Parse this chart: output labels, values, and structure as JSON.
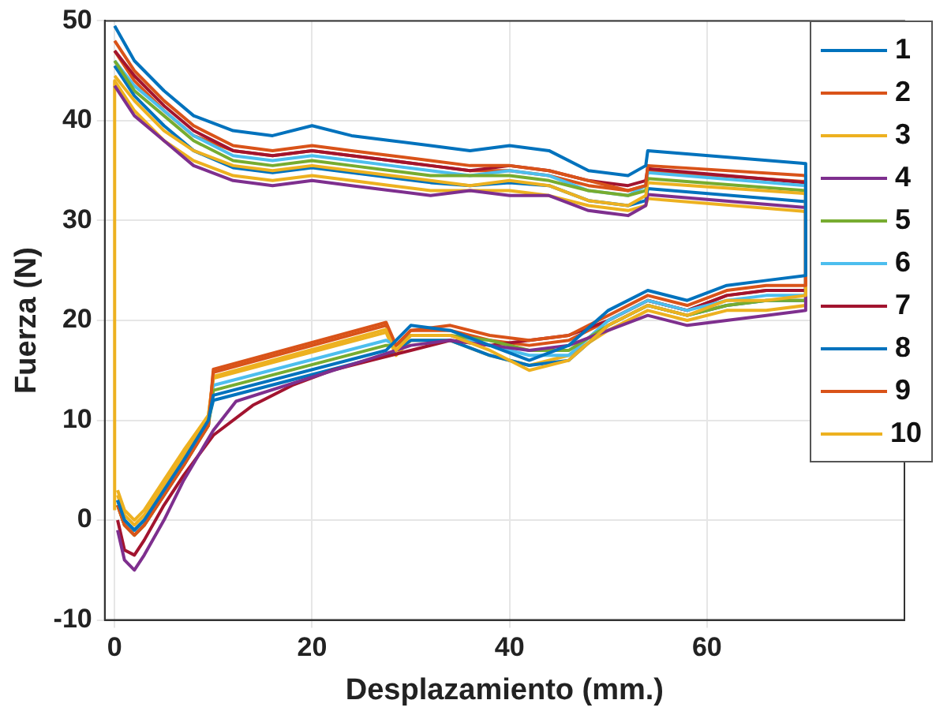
{
  "chart_data": {
    "type": "line",
    "xlabel": "Desplazamiento (mm.)",
    "ylabel": "Fuerza (N)",
    "xlim": [
      -1,
      80
    ],
    "xticks": [
      0,
      20,
      40,
      60
    ],
    "ylim": [
      -10,
      50
    ],
    "yticks": [
      -10,
      0,
      10,
      20,
      30,
      40,
      50
    ],
    "grid": true,
    "legend": "top right",
    "marker": "none",
    "line_style": "solid",
    "series": [
      {
        "name": "1",
        "color": "#0072bd",
        "x": [
          0,
          2,
          5,
          8,
          12,
          16,
          20,
          24,
          28,
          32,
          36,
          40,
          44,
          48,
          52,
          53.8,
          54,
          70,
          70,
          66,
          62,
          58,
          54,
          50,
          46,
          42,
          38,
          34,
          30,
          28.5,
          27.5,
          10,
          9.5,
          7,
          5,
          3,
          2,
          1,
          0.3
        ],
        "values": [
          49.5,
          46,
          43,
          40.5,
          39,
          38.5,
          39.5,
          38.5,
          38,
          37.5,
          37,
          37.5,
          37,
          35,
          34.5,
          35.5,
          37,
          35.7,
          24.5,
          24,
          23.5,
          22,
          23,
          21,
          17.5,
          16,
          17.5,
          19,
          19.5,
          18,
          17,
          12.5,
          10,
          6,
          3,
          0,
          -1,
          0,
          2
        ]
      },
      {
        "name": "2",
        "color": "#d95319",
        "x": [
          0,
          2,
          5,
          8,
          12,
          16,
          20,
          24,
          28,
          32,
          36,
          40,
          44,
          48,
          52,
          53.8,
          54,
          70,
          70,
          66,
          62,
          58,
          54,
          50,
          46,
          42,
          38,
          34,
          30,
          28.5,
          27.5,
          10,
          9.5,
          7,
          5,
          3,
          2,
          1,
          0.3
        ],
        "values": [
          48,
          45,
          42,
          39.5,
          37.5,
          37,
          37.5,
          37,
          36.5,
          36,
          35.5,
          35.5,
          35,
          34,
          33,
          33.5,
          35.5,
          34.5,
          23.5,
          23.5,
          23,
          21.5,
          22.5,
          20.5,
          18.5,
          18,
          18.5,
          19.5,
          19,
          17.5,
          19.8,
          15.1,
          9.5,
          5.5,
          2.5,
          -0.5,
          -1.5,
          -0.5,
          1.5
        ]
      },
      {
        "name": "3",
        "color": "#edb120",
        "x": [
          0,
          2,
          5,
          8,
          12,
          16,
          20,
          24,
          28,
          32,
          36,
          40,
          44,
          48,
          52,
          53.8,
          54,
          70,
          70,
          66,
          62,
          58,
          54,
          50,
          46,
          42,
          38,
          34,
          30,
          28.5,
          27.5,
          10,
          9.5,
          7,
          5,
          3,
          2,
          1,
          0.3
        ],
        "values": [
          44.5,
          42,
          39,
          37,
          35.5,
          35,
          35.5,
          35,
          34.5,
          34,
          33.5,
          34,
          33.5,
          32,
          31.5,
          32.5,
          33.8,
          32.7,
          22.5,
          22,
          22,
          20.5,
          21.5,
          19.5,
          16,
          15,
          17,
          18.5,
          18.5,
          17,
          19.1,
          14.4,
          10.5,
          6.5,
          3.5,
          0.5,
          -0.5,
          0.5,
          2.5
        ]
      },
      {
        "name": "4",
        "color": "#7e2f8e",
        "x": [
          0,
          2,
          5,
          8,
          12,
          16,
          20,
          24,
          28,
          32,
          36,
          40,
          44,
          48,
          52,
          53.8,
          54,
          70,
          70,
          66,
          62,
          58,
          54,
          50,
          46,
          42,
          38,
          34,
          30,
          28.5,
          26.3,
          12.3,
          10,
          7,
          5,
          3,
          2,
          1,
          0.3
        ],
        "values": [
          43.5,
          40.5,
          38,
          35.5,
          34,
          33.5,
          34,
          33.5,
          33,
          32.5,
          33,
          32.5,
          32.5,
          31,
          30.5,
          31.5,
          32.6,
          31.3,
          21,
          20.5,
          20,
          19.5,
          20.5,
          19,
          17.5,
          17,
          17.5,
          18,
          17.5,
          17,
          16.3,
          11.9,
          9,
          4,
          0,
          -3.5,
          -5,
          -4,
          -1
        ]
      },
      {
        "name": "5",
        "color": "#77ac30",
        "x": [
          0,
          2,
          5,
          8,
          12,
          16,
          20,
          24,
          28,
          32,
          36,
          40,
          44,
          48,
          52,
          53.8,
          54,
          70,
          70,
          66,
          62,
          58,
          54,
          50,
          46,
          42,
          38,
          34,
          30,
          28.5,
          27.5,
          10,
          9.5,
          7,
          5,
          3,
          2,
          1,
          0.3
        ],
        "values": [
          46,
          43,
          40.5,
          38,
          36,
          35.5,
          36,
          35.5,
          35,
          34.5,
          34.5,
          34.5,
          34,
          33,
          32.5,
          33,
          34.2,
          33,
          22,
          22,
          21.5,
          20.5,
          21.5,
          19.5,
          17,
          17,
          18,
          18.5,
          18.5,
          17.5,
          17.5,
          13,
          9.5,
          5.5,
          2.5,
          -0.5,
          -1.5,
          -0.5,
          1.5
        ]
      },
      {
        "name": "6",
        "color": "#4dbeee",
        "x": [
          0,
          2,
          5,
          8,
          12,
          16,
          20,
          24,
          28,
          32,
          36,
          40,
          44,
          48,
          52,
          53.8,
          54,
          70,
          70,
          66,
          62,
          58,
          54,
          50,
          46,
          42,
          38,
          34,
          30,
          28.5,
          27.5,
          10,
          9.5,
          7,
          5,
          3,
          2,
          1,
          0.3
        ],
        "values": [
          46,
          43.5,
          41,
          38.5,
          36.5,
          36,
          36.5,
          36,
          35.5,
          35,
          34.5,
          35,
          34.5,
          33,
          32.5,
          33.5,
          34.8,
          33.5,
          22.5,
          22.5,
          22,
          21,
          22,
          20,
          16.5,
          16.5,
          17.5,
          18.5,
          18.5,
          17.5,
          18,
          13.5,
          10,
          6,
          2.5,
          0,
          -1,
          0,
          2
        ]
      },
      {
        "name": "7",
        "color": "#a2142f",
        "x": [
          0,
          2,
          5,
          8,
          12,
          16,
          20,
          24,
          28,
          32,
          36,
          40,
          44,
          48,
          52,
          53.8,
          54,
          70,
          70,
          66,
          62,
          58,
          54,
          50,
          46,
          42,
          38,
          34,
          30,
          26,
          22,
          18,
          14,
          10,
          7,
          5,
          3,
          2,
          1,
          0.3
        ],
        "values": [
          47,
          44.5,
          41.5,
          39,
          37,
          36.5,
          37,
          36.5,
          36,
          35.5,
          35,
          35.5,
          35,
          34,
          33.5,
          34,
          35.2,
          33.8,
          23,
          23,
          22.5,
          21,
          22,
          20,
          18.5,
          18,
          17.5,
          18,
          17,
          16,
          15,
          13.5,
          11.5,
          8.5,
          4.5,
          1.5,
          -2,
          -3.5,
          -3,
          0
        ]
      },
      {
        "name": "8",
        "color": "#0072bd",
        "x": [
          0,
          2,
          5,
          8,
          12,
          16,
          20,
          24,
          28,
          32,
          36,
          40,
          44,
          48,
          52,
          53.8,
          54,
          70,
          70,
          66,
          62,
          58,
          54,
          50,
          46,
          42,
          38,
          34,
          30,
          28.5,
          27.5,
          10,
          9.5,
          7,
          5,
          3,
          2,
          1,
          0.3
        ],
        "values": [
          45.5,
          42.5,
          39.5,
          37,
          35.3,
          34.8,
          35.3,
          34.8,
          34.3,
          33.8,
          33.5,
          33.8,
          33.5,
          32,
          31.5,
          32,
          33.2,
          31.9,
          22,
          22,
          21.5,
          20.5,
          21.5,
          19.5,
          16,
          15.5,
          16.5,
          18,
          18,
          17,
          16.5,
          12,
          10,
          6,
          3,
          0,
          -1,
          0,
          2
        ]
      },
      {
        "name": "9",
        "color": "#d95319",
        "x": [
          0,
          2,
          5,
          8,
          12,
          16,
          20,
          24,
          28,
          32,
          36,
          40,
          44,
          48,
          52,
          53.8,
          54,
          70,
          70,
          66,
          62,
          58,
          54,
          50,
          46,
          42,
          38,
          34,
          30,
          28.5,
          27.5,
          10,
          9.5,
          7,
          5,
          3,
          2,
          1,
          0.3
        ],
        "values": [
          47,
          44,
          41,
          38.5,
          37,
          36.5,
          37,
          36.5,
          36,
          35.5,
          35,
          35,
          34.5,
          33.5,
          33,
          33.5,
          35,
          33.9,
          23,
          23,
          22.5,
          21,
          22,
          20,
          18,
          17.5,
          18,
          19,
          19,
          17.5,
          19.5,
          14.8,
          9.5,
          5.5,
          2.5,
          -0.5,
          -1.5,
          -0.5,
          1.5
        ]
      },
      {
        "name": "10",
        "color": "#edb120",
        "x": [
          0,
          0,
          2,
          5,
          8,
          12,
          16,
          20,
          24,
          28,
          32,
          36,
          40,
          44,
          48,
          52,
          53.8,
          54,
          70,
          70,
          66,
          62,
          58,
          54,
          50,
          46,
          42,
          38,
          34,
          30,
          28.5,
          27.5,
          10,
          9.5,
          7,
          5,
          3,
          2,
          1,
          0.3
        ],
        "values": [
          1,
          44,
          41,
          38,
          36,
          34.5,
          34,
          34.5,
          34,
          33.5,
          33,
          33,
          33,
          32.5,
          31.5,
          31,
          31.5,
          32.2,
          30.9,
          21.5,
          21,
          21,
          20,
          21,
          19,
          16.5,
          15.5,
          16.5,
          18,
          18,
          16.5,
          18.8,
          14.2,
          10.5,
          7,
          4,
          1,
          0,
          1,
          3
        ]
      }
    ]
  }
}
